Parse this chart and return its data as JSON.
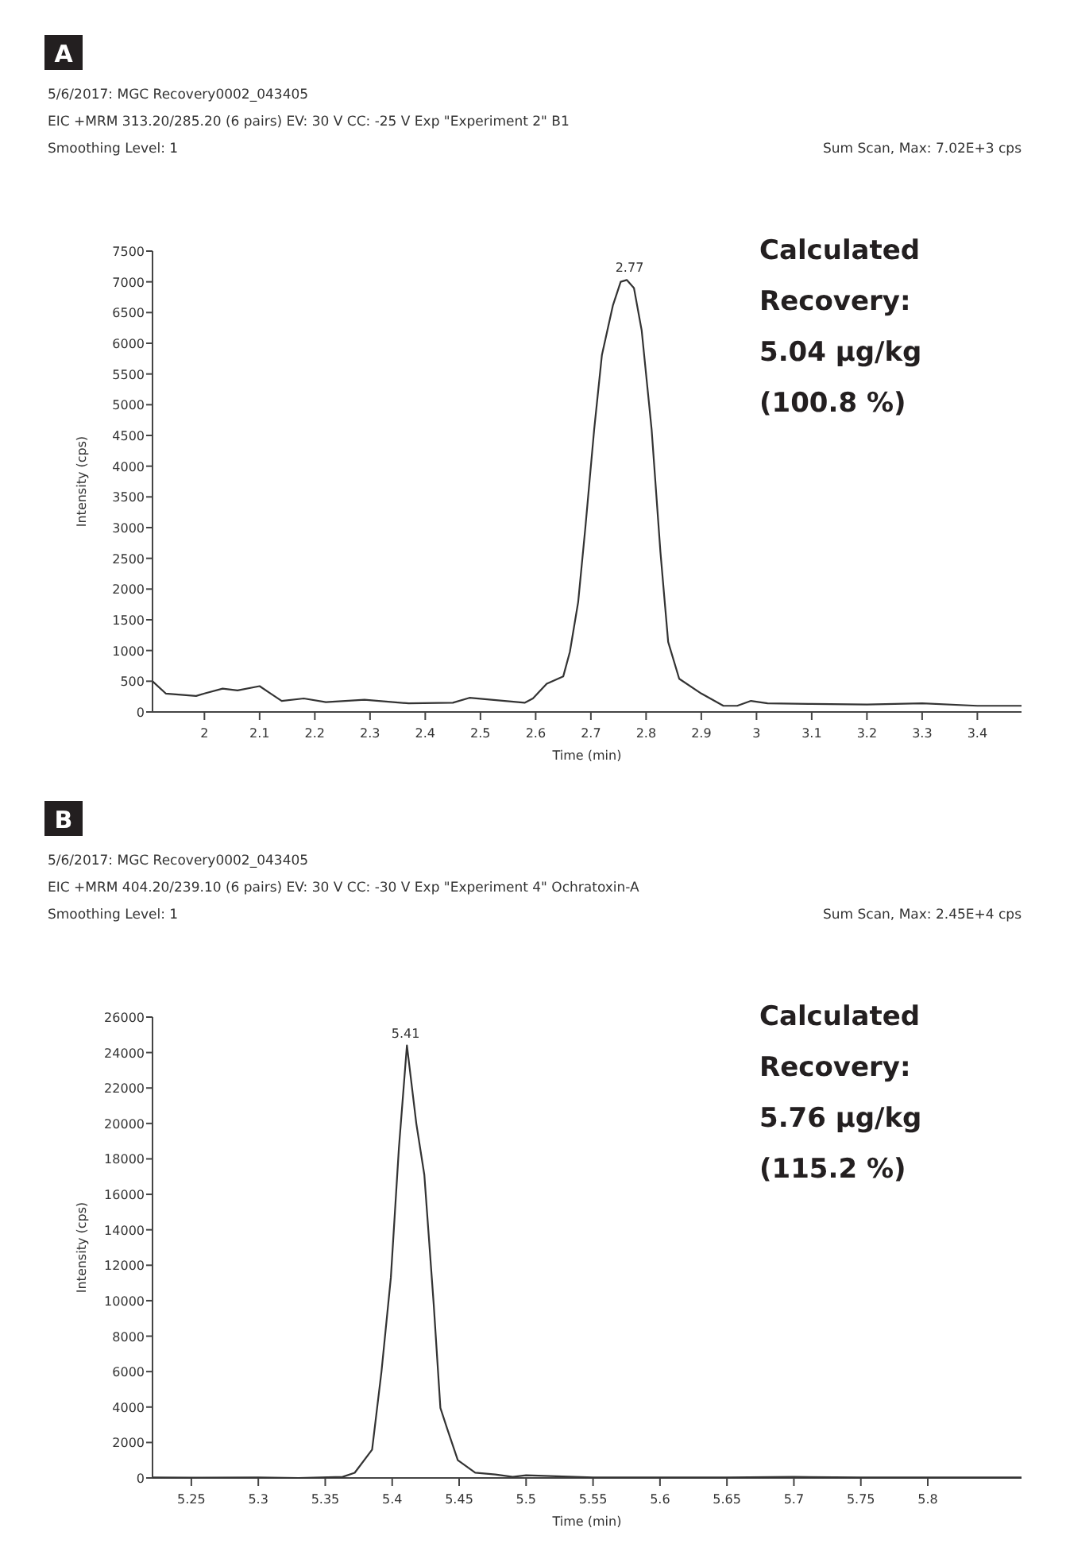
{
  "chart_data": [
    {
      "type": "line",
      "title": "A",
      "subtitle": "5/6/2017: MGC Recovery0002_043405\nEIC +MRM 313.20/285.20 (6 pairs) EV: 30 V CC: -25 V Exp \"Experiment 2\" B1\nSmoothing Level: 1",
      "xlabel": "Time (min)",
      "ylabel": "Intensity (cps)",
      "grid": false,
      "xlim": [
        1.906,
        3.48
      ],
      "xticks": [
        2,
        2.1,
        2.2,
        2.3,
        2.4,
        2.5,
        2.6,
        2.7,
        2.8,
        2.9,
        3,
        3.1,
        3.2,
        3.3,
        3.4
      ],
      "ylim": [
        0,
        7500
      ],
      "yticks": [
        0,
        500,
        1000,
        1500,
        2000,
        2500,
        3000,
        3500,
        4000,
        4500,
        5000,
        5500,
        6000,
        6500,
        7000,
        7500
      ],
      "series": [
        {
          "color": "#333333",
          "x": [
            1.906,
            1.93,
            1.985,
            2.0,
            2.033,
            2.06,
            2.1,
            2.12,
            2.14,
            2.18,
            2.22,
            2.29,
            2.37,
            2.45,
            2.48,
            2.52,
            2.58,
            2.595,
            2.62,
            2.65,
            2.662,
            2.677,
            2.69,
            2.706,
            2.72,
            2.74,
            2.754,
            2.765,
            2.778,
            2.792,
            2.81,
            2.826,
            2.84,
            2.86,
            2.9,
            2.94,
            2.965,
            2.99,
            3.02,
            3.1,
            3.2,
            3.3,
            3.4,
            3.48
          ],
          "values": [
            500,
            300,
            260,
            300,
            380,
            350,
            420,
            300,
            180,
            220,
            160,
            200,
            140,
            150,
            230,
            200,
            150,
            220,
            460,
            580,
            980,
            1790,
            3000,
            4600,
            5810,
            6620,
            7000,
            7030,
            6900,
            6210,
            4600,
            2600,
            1140,
            540,
            300,
            100,
            100,
            180,
            140,
            130,
            120,
            140,
            100,
            100
          ]
        }
      ],
      "annotations": [
        "Sum Scan, Max: 7.02E+3 cps",
        "Calculated\nRecovery:\n5.04 µg/kg\n(100.8 %)",
        {
          "text": "2.77",
          "x": 2.77,
          "y": 7030
        }
      ]
    },
    {
      "type": "line",
      "title": "B",
      "subtitle": "5/6/2017: MGC Recovery0002_043405\nEIC +MRM 404.20/239.10 (6 pairs) EV: 30 V CC: -30 V Exp \"Experiment 4\" Ochratoxin-A\nSmoothing Level: 1",
      "xlabel": "Time (min)",
      "ylabel": "Intensity (cps)",
      "grid": false,
      "xlim": [
        5.221,
        5.87
      ],
      "xticks": [
        5.25,
        5.3,
        5.35,
        5.4,
        5.45,
        5.5,
        5.55,
        5.6,
        5.65,
        5.7,
        5.75,
        5.8
      ],
      "ylim": [
        0,
        26000
      ],
      "yticks": [
        0,
        2000,
        4000,
        6000,
        8000,
        10000,
        12000,
        14000,
        16000,
        18000,
        20000,
        22000,
        24000,
        26000
      ],
      "series": [
        {
          "color": "#333333",
          "x": [
            5.221,
            5.25,
            5.3,
            5.33,
            5.363,
            5.372,
            5.385,
            5.392,
            5.399,
            5.405,
            5.411,
            5.418,
            5.424,
            5.431,
            5.436,
            5.441,
            5.449,
            5.462,
            5.477,
            5.49,
            5.5,
            5.55,
            5.6,
            5.65,
            5.7,
            5.75,
            5.8,
            5.87
          ],
          "values": [
            30,
            20,
            30,
            0,
            60,
            290,
            1600,
            6000,
            11300,
            18600,
            24400,
            20000,
            17100,
            9800,
            3950,
            2800,
            1000,
            300,
            200,
            60,
            150,
            30,
            30,
            30,
            60,
            30,
            30,
            30
          ]
        }
      ],
      "annotations": [
        "Sum Scan, Max: 2.45E+4 cps",
        "Calculated\nRecovery:\n5.76 µg/kg\n(115.2 %)",
        {
          "text": "5.41",
          "x": 5.41,
          "y": 24400
        }
      ]
    }
  ]
}
